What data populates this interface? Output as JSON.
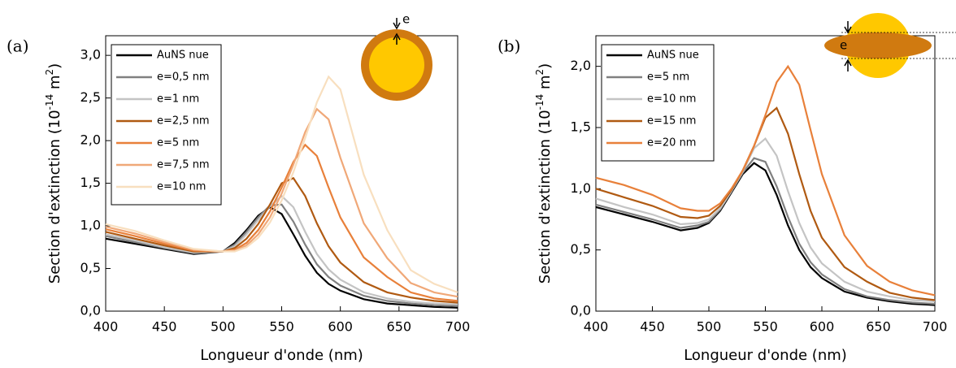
{
  "chart_data": [
    {
      "type": "line",
      "panel_label": "(a)",
      "inset_label": "e",
      "x_label": "Longueur d'onde (nm)",
      "y_label": [
        "Section d'extinction (10",
        "-14",
        " m",
        "2",
        ")"
      ],
      "legend": "upper left",
      "xlim": [
        400,
        700
      ],
      "xticks": [
        400,
        450,
        500,
        550,
        600,
        650,
        700
      ],
      "ylim": [
        0,
        3.23
      ],
      "yticks": [
        {
          "value": 0,
          "label": "0,0"
        },
        {
          "value": 0.5,
          "label": "0,5"
        },
        {
          "value": 1,
          "label": "1,0"
        },
        {
          "value": 1.5,
          "label": "1,5"
        },
        {
          "value": 2,
          "label": "2,0"
        },
        {
          "value": 2.5,
          "label": "2,5"
        },
        {
          "value": 3,
          "label": "3,0"
        }
      ],
      "x": [
        400,
        425,
        450,
        475,
        500,
        510,
        520,
        530,
        540,
        550,
        560,
        570,
        580,
        590,
        600,
        620,
        640,
        660,
        680,
        700
      ],
      "series": [
        {
          "name": "AuNS nue",
          "color": "#000000",
          "values": [
            0.85,
            0.79,
            0.73,
            0.67,
            0.7,
            0.8,
            0.95,
            1.12,
            1.22,
            1.14,
            0.9,
            0.65,
            0.45,
            0.32,
            0.24,
            0.14,
            0.09,
            0.07,
            0.05,
            0.04
          ]
        },
        {
          "name": "e=0,5 nm",
          "color": "#808080",
          "values": [
            0.88,
            0.81,
            0.74,
            0.68,
            0.7,
            0.78,
            0.93,
            1.1,
            1.24,
            1.25,
            1.05,
            0.78,
            0.55,
            0.4,
            0.3,
            0.18,
            0.12,
            0.09,
            0.07,
            0.06
          ]
        },
        {
          "name": "e=1 nm",
          "color": "#c4c4c4",
          "values": [
            0.9,
            0.83,
            0.75,
            0.69,
            0.7,
            0.76,
            0.9,
            1.07,
            1.23,
            1.35,
            1.22,
            0.93,
            0.67,
            0.49,
            0.37,
            0.22,
            0.15,
            0.11,
            0.09,
            0.08
          ]
        },
        {
          "name": "e=2,5 nm",
          "color": "#b05a12",
          "values": [
            0.93,
            0.85,
            0.77,
            0.7,
            0.7,
            0.74,
            0.85,
            1.02,
            1.25,
            1.5,
            1.56,
            1.35,
            1.03,
            0.76,
            0.57,
            0.34,
            0.22,
            0.16,
            0.12,
            0.1
          ]
        },
        {
          "name": "e=5 nm",
          "color": "#e8803a",
          "values": [
            0.96,
            0.88,
            0.79,
            0.71,
            0.7,
            0.72,
            0.8,
            0.95,
            1.17,
            1.45,
            1.75,
            1.95,
            1.82,
            1.45,
            1.1,
            0.63,
            0.4,
            0.22,
            0.15,
            0.12
          ]
        },
        {
          "name": "e=7,5 nm",
          "color": "#f0a878",
          "values": [
            0.99,
            0.91,
            0.81,
            0.72,
            0.7,
            0.71,
            0.77,
            0.9,
            1.1,
            1.38,
            1.72,
            2.1,
            2.37,
            2.25,
            1.8,
            1.03,
            0.62,
            0.33,
            0.22,
            0.17
          ]
        },
        {
          "name": "e=10 nm",
          "color": "#f8dfbf",
          "values": [
            1.02,
            0.94,
            0.83,
            0.73,
            0.7,
            0.7,
            0.75,
            0.86,
            1.04,
            1.3,
            1.63,
            2.03,
            2.45,
            2.75,
            2.6,
            1.6,
            0.95,
            0.48,
            0.32,
            0.22
          ]
        }
      ]
    },
    {
      "type": "line",
      "panel_label": "(b)",
      "inset_label": "e",
      "x_label": "Longueur d'onde (nm)",
      "y_label": [
        "Section d'extinction (10",
        "-14",
        " m",
        "2",
        ")"
      ],
      "legend": "upper left",
      "xlim": [
        400,
        700
      ],
      "xticks": [
        400,
        450,
        500,
        550,
        600,
        650,
        700
      ],
      "ylim": [
        0,
        2.25
      ],
      "yticks": [
        {
          "value": 0,
          "label": "0,0"
        },
        {
          "value": 0.5,
          "label": "0,5"
        },
        {
          "value": 1,
          "label": "1,0"
        },
        {
          "value": 1.5,
          "label": "1,5"
        },
        {
          "value": 2,
          "label": "2,0"
        }
      ],
      "x": [
        400,
        425,
        450,
        475,
        490,
        500,
        510,
        520,
        530,
        540,
        550,
        560,
        570,
        580,
        590,
        600,
        620,
        640,
        660,
        680,
        700
      ],
      "series": [
        {
          "name": "AuNS nue",
          "color": "#000000",
          "values": [
            0.85,
            0.79,
            0.73,
            0.66,
            0.68,
            0.72,
            0.82,
            0.97,
            1.12,
            1.21,
            1.15,
            0.95,
            0.7,
            0.5,
            0.36,
            0.27,
            0.16,
            0.11,
            0.08,
            0.06,
            0.05
          ]
        },
        {
          "name": "e=5 nm",
          "color": "#808080",
          "values": [
            0.87,
            0.81,
            0.75,
            0.68,
            0.7,
            0.73,
            0.83,
            0.98,
            1.13,
            1.25,
            1.22,
            1.02,
            0.77,
            0.55,
            0.4,
            0.3,
            0.18,
            0.12,
            0.09,
            0.07,
            0.06
          ]
        },
        {
          "name": "e=10 nm",
          "color": "#c4c4c4",
          "values": [
            0.92,
            0.85,
            0.79,
            0.71,
            0.72,
            0.75,
            0.84,
            0.98,
            1.14,
            1.33,
            1.41,
            1.27,
            0.98,
            0.72,
            0.52,
            0.39,
            0.24,
            0.16,
            0.12,
            0.09,
            0.08
          ]
        },
        {
          "name": "e=15 nm",
          "color": "#b05a12",
          "values": [
            1.0,
            0.93,
            0.86,
            0.77,
            0.76,
            0.78,
            0.86,
            0.99,
            1.15,
            1.35,
            1.58,
            1.66,
            1.45,
            1.12,
            0.82,
            0.6,
            0.36,
            0.24,
            0.15,
            0.11,
            0.09
          ]
        },
        {
          "name": "e=20 nm",
          "color": "#e8803a",
          "values": [
            1.09,
            1.03,
            0.95,
            0.84,
            0.82,
            0.82,
            0.88,
            1.0,
            1.15,
            1.35,
            1.6,
            1.87,
            2.0,
            1.85,
            1.48,
            1.12,
            0.62,
            0.37,
            0.24,
            0.17,
            0.13
          ]
        }
      ]
    }
  ]
}
